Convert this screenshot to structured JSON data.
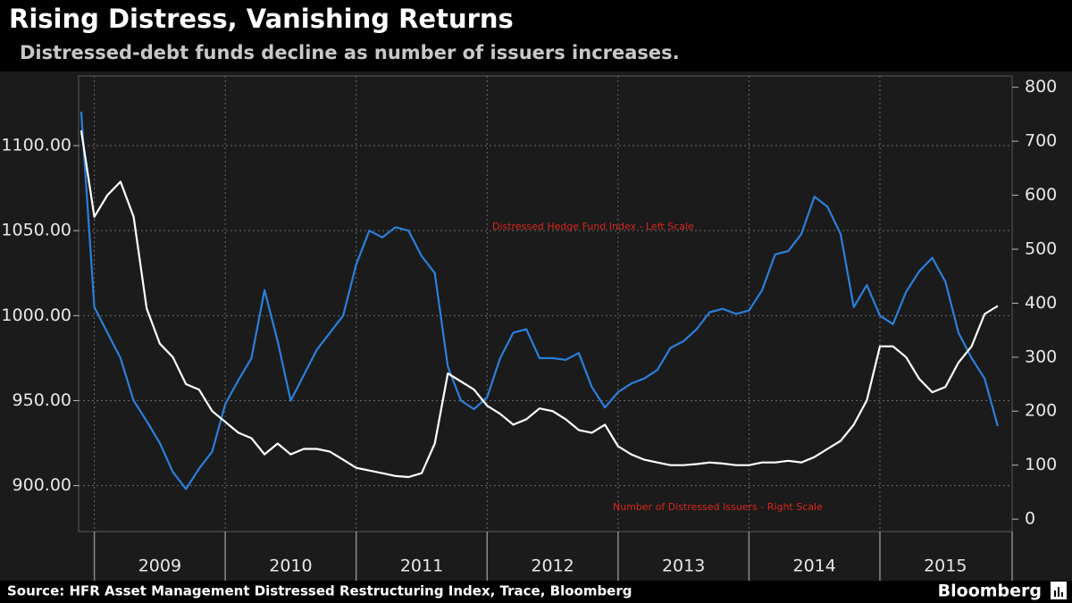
{
  "chart_data": {
    "type": "line",
    "title": "Rising Distress, Vanishing Returns",
    "subtitle": "Distressed-debt funds decline as number of issuers increases.",
    "source": "Source: HFR Asset Management Distressed Restructuring Index, Trace, Bloomberg",
    "brand": "Bloomberg",
    "x": [
      2008.9,
      2009.0,
      2009.1,
      2009.2,
      2009.3,
      2009.4,
      2009.5,
      2009.6,
      2009.7,
      2009.8,
      2009.9,
      2010.0,
      2010.1,
      2010.2,
      2010.3,
      2010.4,
      2010.5,
      2010.6,
      2010.7,
      2010.8,
      2010.9,
      2011.0,
      2011.1,
      2011.2,
      2011.3,
      2011.4,
      2011.5,
      2011.6,
      2011.7,
      2011.8,
      2011.9,
      2012.0,
      2012.1,
      2012.2,
      2012.3,
      2012.4,
      2012.5,
      2012.6,
      2012.7,
      2012.8,
      2012.9,
      2013.0,
      2013.1,
      2013.2,
      2013.3,
      2013.4,
      2013.5,
      2013.6,
      2013.7,
      2013.8,
      2013.9,
      2014.0,
      2014.1,
      2014.2,
      2014.3,
      2014.4,
      2014.5,
      2014.6,
      2014.7,
      2014.8,
      2014.9,
      2015.0,
      2015.1,
      2015.2,
      2015.3,
      2015.4,
      2015.5,
      2015.6,
      2015.7,
      2015.8,
      2015.9
    ],
    "xlim": [
      2008.88,
      2016.01
    ],
    "xticks": [
      {
        "value": 2009,
        "label": "2009"
      },
      {
        "value": 2010,
        "label": "2010"
      },
      {
        "value": 2011,
        "label": "2011"
      },
      {
        "value": 2012,
        "label": "2012"
      },
      {
        "value": 2013,
        "label": "2013"
      },
      {
        "value": 2014,
        "label": "2014"
      },
      {
        "value": 2015,
        "label": "2015"
      }
    ],
    "ylim": [
      873,
      1141
    ],
    "yticks": [
      {
        "value": 900,
        "label": "900.00"
      },
      {
        "value": 950,
        "label": "950.00"
      },
      {
        "value": 1000,
        "label": "1000.00"
      },
      {
        "value": 1050,
        "label": "1050.00"
      },
      {
        "value": 1100,
        "label": "1100.00"
      }
    ],
    "y2lim": [
      -23,
      821
    ],
    "y2ticks": [
      0,
      100,
      200,
      300,
      400,
      500,
      600,
      700,
      800
    ],
    "grid": true,
    "series": [
      {
        "name": "Distressed Hedge Fund Index - Left Scale",
        "color": "#2b7fdb",
        "values": [
          1120,
          1005,
          990,
          975,
          950,
          938,
          925,
          908,
          898,
          910,
          920,
          948,
          962,
          975,
          1015,
          985,
          950,
          965,
          980,
          990,
          1000,
          1030,
          1050,
          1046,
          1052,
          1050,
          1035,
          1025,
          970,
          950,
          945,
          952,
          975,
          990,
          992,
          975,
          975,
          974,
          978,
          958,
          946,
          955,
          960,
          963,
          968,
          981,
          985,
          992,
          1002,
          1004,
          1001,
          1003,
          1015,
          1036,
          1038,
          1048,
          1070,
          1064,
          1048,
          1005,
          1018,
          1000,
          995,
          1014,
          1026,
          1034,
          1020,
          990,
          975,
          963,
          935
        ]
      },
      {
        "name": "Number of Distressed Issuers - Right Scale",
        "color": "#ffffff",
        "axis": "y2",
        "values": [
          720,
          560,
          600,
          625,
          560,
          390,
          325,
          300,
          250,
          240,
          200,
          180,
          160,
          150,
          120,
          140,
          120,
          130,
          130,
          125,
          110,
          95,
          90,
          85,
          80,
          78,
          85,
          140,
          270,
          255,
          240,
          210,
          195,
          175,
          185,
          205,
          200,
          185,
          165,
          160,
          175,
          135,
          120,
          110,
          105,
          100,
          100,
          102,
          105,
          103,
          100,
          100,
          105,
          105,
          108,
          105,
          115,
          130,
          145,
          175,
          220,
          320,
          320,
          300,
          260,
          235,
          245,
          290,
          320,
          380,
          395
        ]
      }
    ]
  }
}
